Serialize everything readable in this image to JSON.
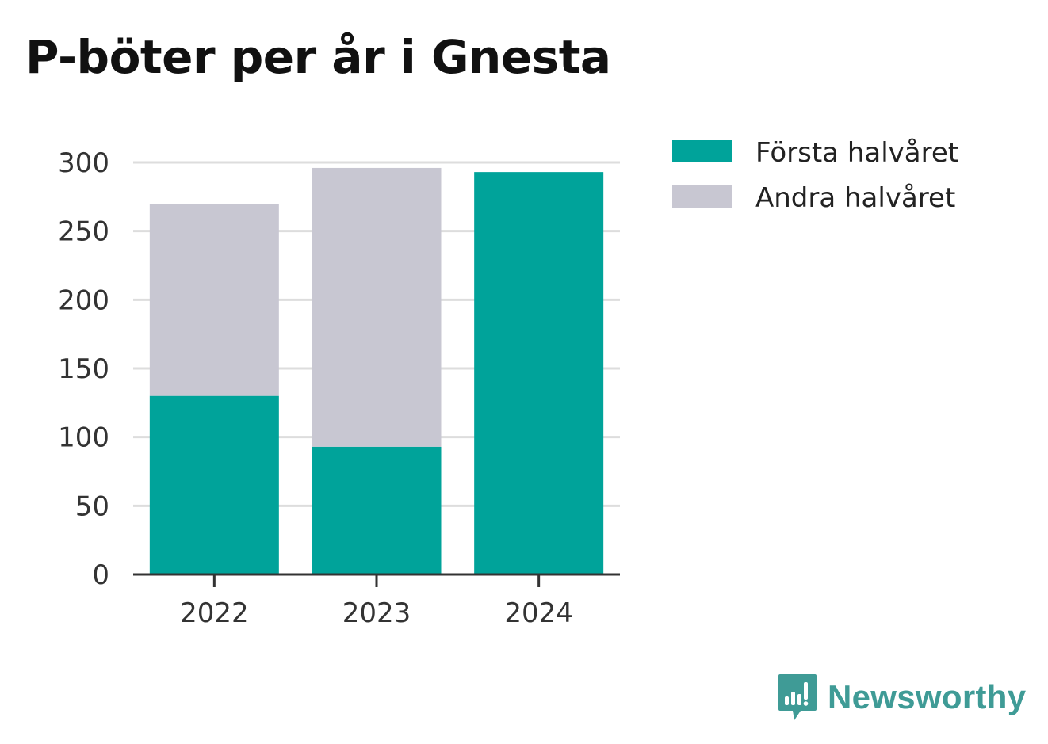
{
  "title": "P-böter per år i Gnesta",
  "brand": {
    "name": "Newsworthy",
    "icon": "newsworthy-logo-icon",
    "color": "#3f9b96"
  },
  "chart_data": {
    "type": "bar",
    "stacked": true,
    "title": "P-böter per år i Gnesta",
    "xlabel": "",
    "ylabel": "",
    "categories": [
      "2022",
      "2023",
      "2024"
    ],
    "series": [
      {
        "name": "Första halvåret",
        "color": "#00a39a",
        "values": [
          130,
          93,
          293
        ]
      },
      {
        "name": "Andra halvåret",
        "color": "#c8c7d2",
        "values": [
          140,
          203,
          null
        ]
      }
    ],
    "ylim": [
      0,
      300
    ],
    "yticks": [
      "0",
      "50",
      "100",
      "150",
      "200",
      "250",
      "300"
    ],
    "grid": true,
    "legend": "top-right"
  }
}
